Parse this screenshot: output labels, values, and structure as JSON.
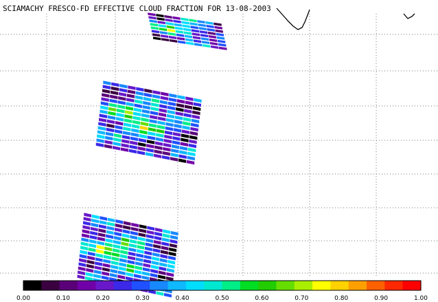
{
  "title": "SCIAMACHY FRESCO-FD EFFECTIVE CLOUD FRACTION FOR 13-08-2003",
  "colorbar": {
    "ticks": [
      "0.00",
      "0.10",
      "0.20",
      "0.30",
      "0.40",
      "0.50",
      "0.60",
      "0.70",
      "0.80",
      "0.90",
      "1.00"
    ],
    "range": [
      0.0,
      1.0
    ],
    "colors": [
      "#000000",
      "#3a0040",
      "#5a0078",
      "#7000a8",
      "#6818c8",
      "#3c28e8",
      "#2050ff",
      "#1888ff",
      "#10b8ff",
      "#00ddff",
      "#00e8d0",
      "#00ee88",
      "#00dd22",
      "#22cc00",
      "#66dd00",
      "#aaee00",
      "#ffff00",
      "#ffd200",
      "#ffa000",
      "#ff6000",
      "#ff2800",
      "#ff0000"
    ]
  },
  "grid": {
    "visible": true,
    "style": "dotted"
  },
  "map_layers": [
    {
      "name": "satellite-swath-top",
      "kind": "cloud-fraction-swath"
    },
    {
      "name": "satellite-swath-middle",
      "kind": "cloud-fraction-swath"
    },
    {
      "name": "satellite-swath-bottom",
      "kind": "cloud-fraction-swath"
    },
    {
      "name": "coastline",
      "kind": "outline"
    }
  ]
}
